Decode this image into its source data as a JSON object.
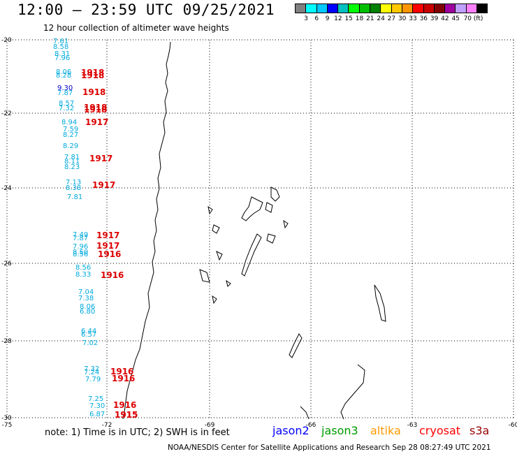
{
  "header": {
    "title": "12:00 – 23:59 UTC 09/25/2021",
    "subtitle": "12 hour collection of altimeter wave heights"
  },
  "legend": {
    "colors": [
      "#808080",
      "#00ffff",
      "#00c8ff",
      "#0000ff",
      "#00c0c0",
      "#00ff00",
      "#00c000",
      "#008000",
      "#ffff00",
      "#ffc800",
      "#ff9600",
      "#ff0000",
      "#c80000",
      "#800000",
      "#a000a0",
      "#c0a0ff",
      "#ff80ff",
      "#000000"
    ],
    "labels": [
      "3",
      "6",
      "9",
      "12",
      "15",
      "18",
      "21",
      "24",
      "27",
      "30",
      "33",
      "36",
      "39",
      "42",
      "45",
      "70 (ft)"
    ]
  },
  "axes": {
    "lat_labels": [
      "-20",
      "-22",
      "-24",
      "-26",
      "-28",
      "-30"
    ],
    "lon_labels": [
      "-75",
      "-72",
      "-69",
      "-66",
      "-63",
      "-60"
    ]
  },
  "observations": [
    {
      "v": "7.61",
      "c": "#00aadd"
    },
    {
      "v": "8.58",
      "c": "#00aadd"
    },
    {
      "v": "8.31",
      "c": "#00aadd"
    },
    {
      "v": "7.96",
      "c": "#00aadd"
    },
    {
      "v": "8.06",
      "c": "#00aadd"
    },
    {
      "v": "8.28",
      "c": "#00aadd"
    },
    {
      "v": "9.30",
      "c": "#0000cc"
    },
    {
      "v": "7.87",
      "c": "#00aadd"
    },
    {
      "v": "8.57",
      "c": "#00aadd"
    },
    {
      "v": "7.32",
      "c": "#00aadd"
    },
    {
      "v": "8.94",
      "c": "#00aadd"
    },
    {
      "v": "7.59",
      "c": "#00aadd"
    },
    {
      "v": "8.27",
      "c": "#00aadd"
    },
    {
      "v": "8.29",
      "c": "#00aadd"
    },
    {
      "v": "7.81",
      "c": "#00aadd"
    },
    {
      "v": "8.11",
      "c": "#00aadd"
    },
    {
      "v": "8.23",
      "c": "#00aadd"
    },
    {
      "v": "7.13",
      "c": "#00aadd"
    },
    {
      "v": "8.38",
      "c": "#00aadd"
    },
    {
      "v": "7.81",
      "c": "#00aadd"
    },
    {
      "v": "7.49",
      "c": "#00aadd"
    },
    {
      "v": "7.87",
      "c": "#00aadd"
    },
    {
      "v": "7.96",
      "c": "#00aadd"
    },
    {
      "v": "8.50",
      "c": "#00aadd"
    },
    {
      "v": "8.56",
      "c": "#00aadd"
    },
    {
      "v": "8.56",
      "c": "#00aadd"
    },
    {
      "v": "8.33",
      "c": "#00aadd"
    },
    {
      "v": "7.04",
      "c": "#00aadd"
    },
    {
      "v": "7.38",
      "c": "#00aadd"
    },
    {
      "v": "8.06",
      "c": "#00aadd"
    },
    {
      "v": "6.80",
      "c": "#00aadd"
    },
    {
      "v": "6.44",
      "c": "#00aadd"
    },
    {
      "v": "6.57",
      "c": "#00aadd"
    },
    {
      "v": "7.02",
      "c": "#00aadd"
    },
    {
      "v": "7.32",
      "c": "#00aadd"
    },
    {
      "v": "7.24",
      "c": "#00aadd"
    },
    {
      "v": "7.79",
      "c": "#00aadd"
    },
    {
      "v": "7.25",
      "c": "#00aadd"
    },
    {
      "v": "7.30",
      "c": "#00aadd"
    },
    {
      "v": "6.87",
      "c": "#00aadd"
    }
  ],
  "times": [
    {
      "t": "1918"
    },
    {
      "t": "1918"
    },
    {
      "t": "1918"
    },
    {
      "t": "1918"
    },
    {
      "t": "1918"
    },
    {
      "t": "1917"
    },
    {
      "t": "1917"
    },
    {
      "t": "1917"
    },
    {
      "t": "1917"
    },
    {
      "t": "1917"
    },
    {
      "t": "1916"
    },
    {
      "t": "1916"
    },
    {
      "t": "1916"
    },
    {
      "t": "1916"
    },
    {
      "t": "1916"
    },
    {
      "t": "1915"
    },
    {
      "t": "1915"
    }
  ],
  "footer": {
    "note": "note:  1) Time is in UTC;  2) SWH is in feet",
    "satellites": [
      {
        "name": "jason2",
        "color": "#0000ff"
      },
      {
        "name": "jason3",
        "color": "#009900"
      },
      {
        "name": "altika",
        "color": "#ff9900"
      },
      {
        "name": "cryosat",
        "color": "#ff0000"
      },
      {
        "name": "s3a",
        "color": "#990000"
      }
    ],
    "credit": "NOAA/NESDIS Center for Satellite Applications and Research    Sep 28 08:27:49 UTC 2021"
  }
}
